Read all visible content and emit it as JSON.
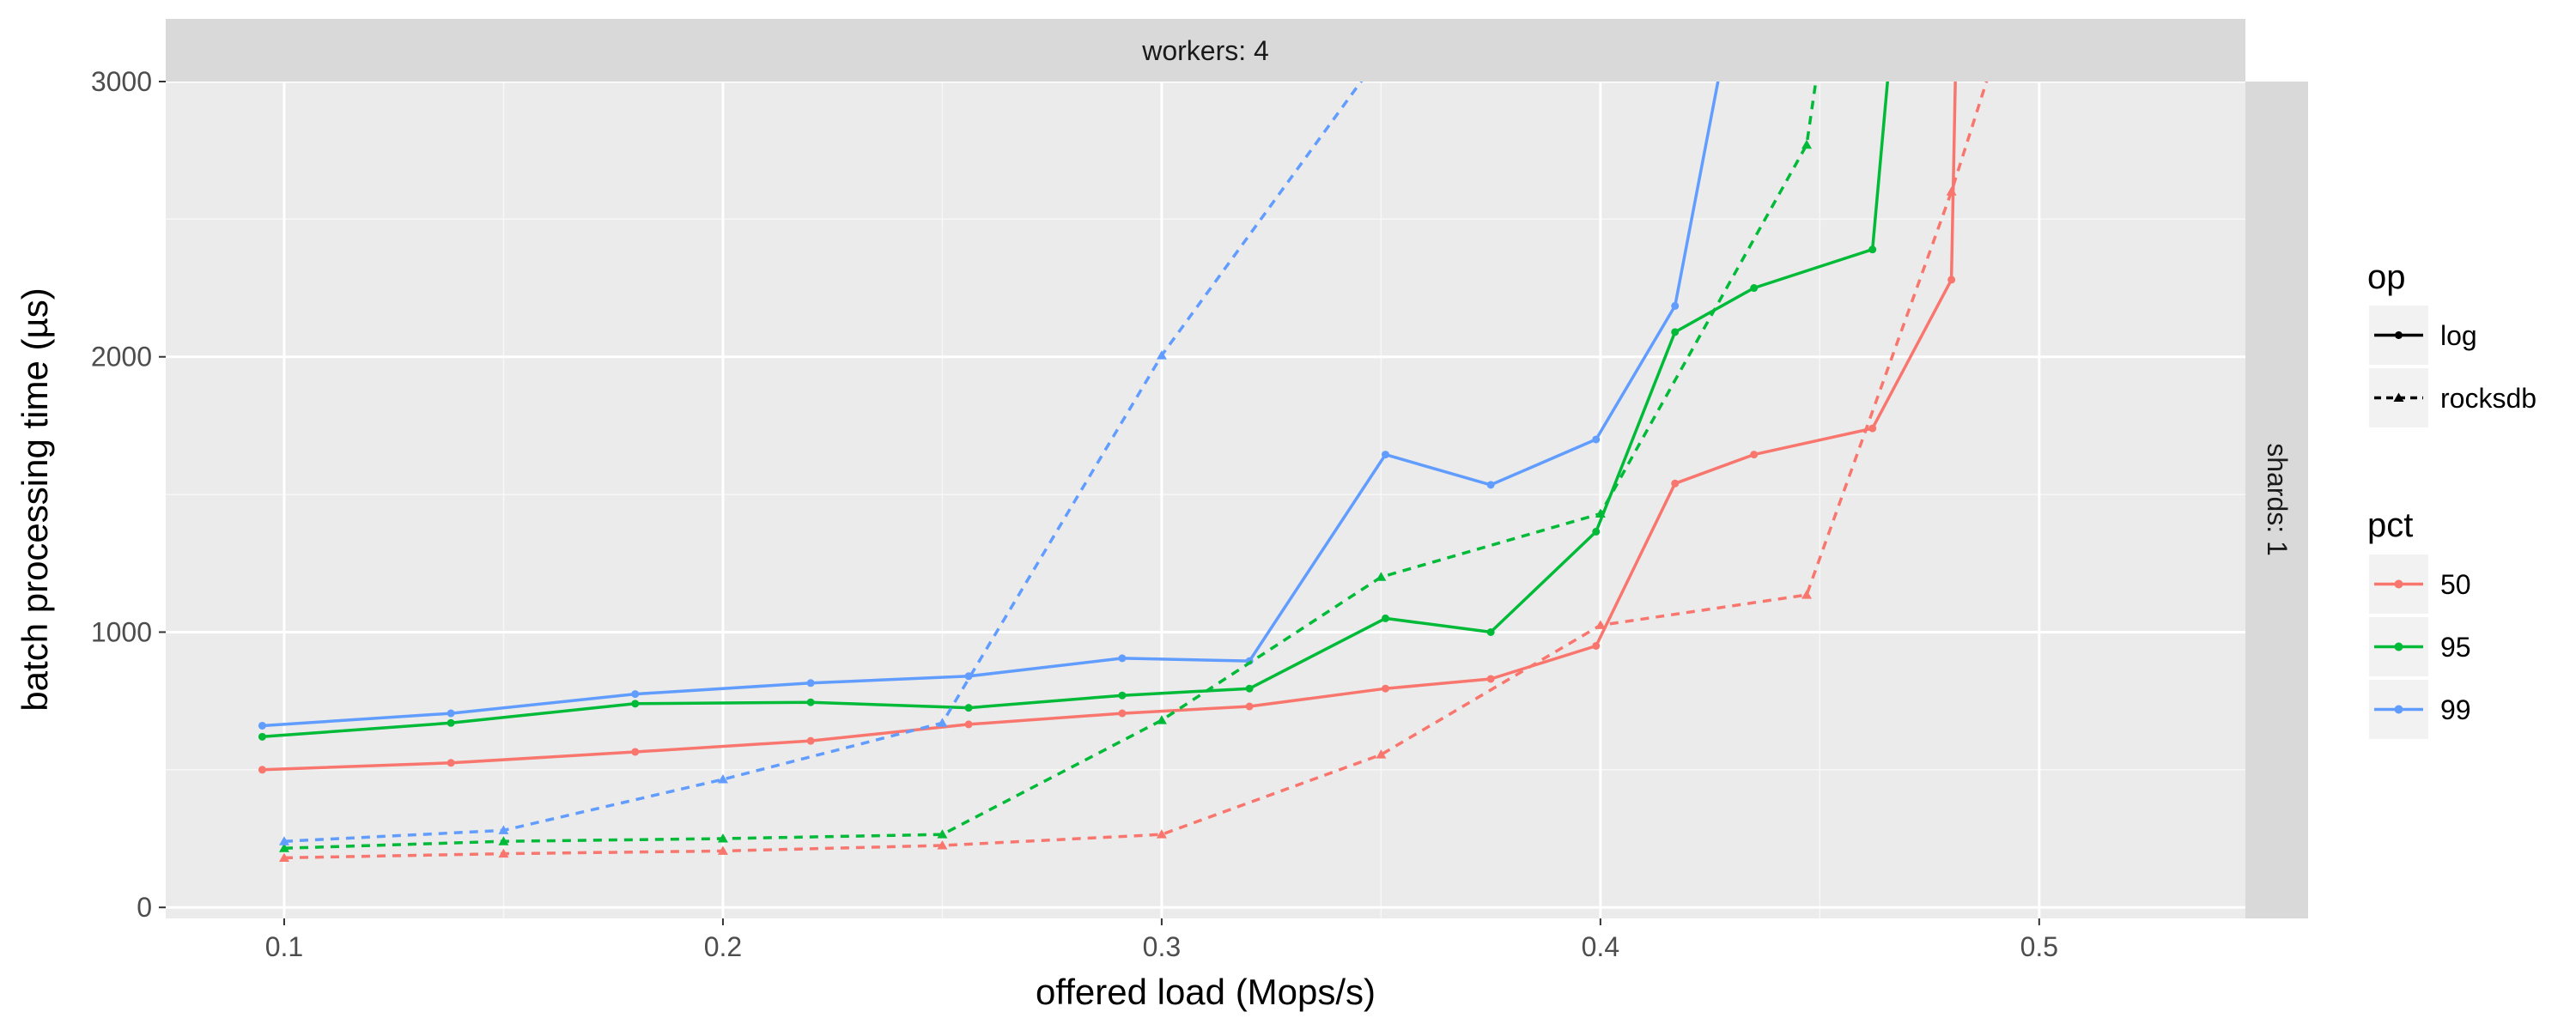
{
  "chart_data": {
    "type": "line",
    "facet_top": "workers: 4",
    "facet_right": "shards: 1",
    "xlabel": "offered load (Mops/s)",
    "ylabel": "batch processing time (µs)",
    "xlim": [
      0.073,
      0.547
    ],
    "ylim": [
      -40,
      3000
    ],
    "x_ticks": [
      0.1,
      0.2,
      0.3,
      0.4,
      0.5
    ],
    "x_tick_labels": [
      "0.1",
      "0.2",
      "0.3",
      "0.4",
      "0.5"
    ],
    "y_ticks": [
      0,
      1000,
      2000,
      3000
    ],
    "y_tick_labels": [
      "0",
      "1000",
      "2000",
      "3000"
    ],
    "grid": true,
    "legend": {
      "position": "right",
      "op": {
        "title": "op",
        "items": [
          {
            "key": "log",
            "label": "log",
            "dash": "solid"
          },
          {
            "key": "rocksdb",
            "label": "rocksdb",
            "dash": "dashed"
          }
        ]
      },
      "pct": {
        "title": "pct",
        "items": [
          {
            "key": "50",
            "label": "50",
            "color": "#F8766D"
          },
          {
            "key": "95",
            "label": "95",
            "color": "#00BA38"
          },
          {
            "key": "99",
            "label": "99",
            "color": "#619CFF"
          }
        ]
      }
    },
    "series": [
      {
        "op": "log",
        "pct": "50",
        "points": [
          [
            0.095,
            500
          ],
          [
            0.138,
            525
          ],
          [
            0.18,
            565
          ],
          [
            0.22,
            605
          ],
          [
            0.256,
            665
          ],
          [
            0.291,
            705
          ],
          [
            0.32,
            730
          ],
          [
            0.351,
            795
          ],
          [
            0.375,
            830
          ],
          [
            0.399,
            950
          ],
          [
            0.417,
            1540
          ],
          [
            0.435,
            1645
          ],
          [
            0.462,
            1740
          ],
          [
            0.48,
            2280
          ],
          [
            0.481,
            3100
          ]
        ]
      },
      {
        "op": "log",
        "pct": "95",
        "points": [
          [
            0.095,
            620
          ],
          [
            0.138,
            670
          ],
          [
            0.18,
            740
          ],
          [
            0.22,
            745
          ],
          [
            0.256,
            725
          ],
          [
            0.291,
            770
          ],
          [
            0.32,
            795
          ],
          [
            0.351,
            1050
          ],
          [
            0.375,
            1000
          ],
          [
            0.399,
            1365
          ],
          [
            0.417,
            2090
          ],
          [
            0.435,
            2250
          ],
          [
            0.462,
            2390
          ],
          [
            0.466,
            3100
          ]
        ]
      },
      {
        "op": "log",
        "pct": "99",
        "points": [
          [
            0.095,
            660
          ],
          [
            0.138,
            705
          ],
          [
            0.18,
            775
          ],
          [
            0.22,
            815
          ],
          [
            0.256,
            840
          ],
          [
            0.291,
            905
          ],
          [
            0.32,
            895
          ],
          [
            0.351,
            1645
          ],
          [
            0.375,
            1535
          ],
          [
            0.399,
            1700
          ],
          [
            0.417,
            2185
          ],
          [
            0.428,
            3100
          ]
        ]
      },
      {
        "op": "rocksdb",
        "pct": "50",
        "points": [
          [
            0.1,
            180
          ],
          [
            0.15,
            195
          ],
          [
            0.2,
            205
          ],
          [
            0.25,
            225
          ],
          [
            0.3,
            265
          ],
          [
            0.35,
            555
          ],
          [
            0.4,
            1025
          ],
          [
            0.447,
            1135
          ],
          [
            0.48,
            2600
          ],
          [
            0.49,
            3100
          ]
        ]
      },
      {
        "op": "rocksdb",
        "pct": "95",
        "points": [
          [
            0.1,
            215
          ],
          [
            0.15,
            240
          ],
          [
            0.2,
            250
          ],
          [
            0.25,
            265
          ],
          [
            0.3,
            680
          ],
          [
            0.35,
            1200
          ],
          [
            0.4,
            1430
          ],
          [
            0.447,
            2770
          ],
          [
            0.45,
            3100
          ]
        ]
      },
      {
        "op": "rocksdb",
        "pct": "99",
        "points": [
          [
            0.1,
            240
          ],
          [
            0.15,
            280
          ],
          [
            0.2,
            465
          ],
          [
            0.25,
            670
          ],
          [
            0.3,
            2005
          ],
          [
            0.35,
            3100
          ]
        ]
      }
    ]
  }
}
